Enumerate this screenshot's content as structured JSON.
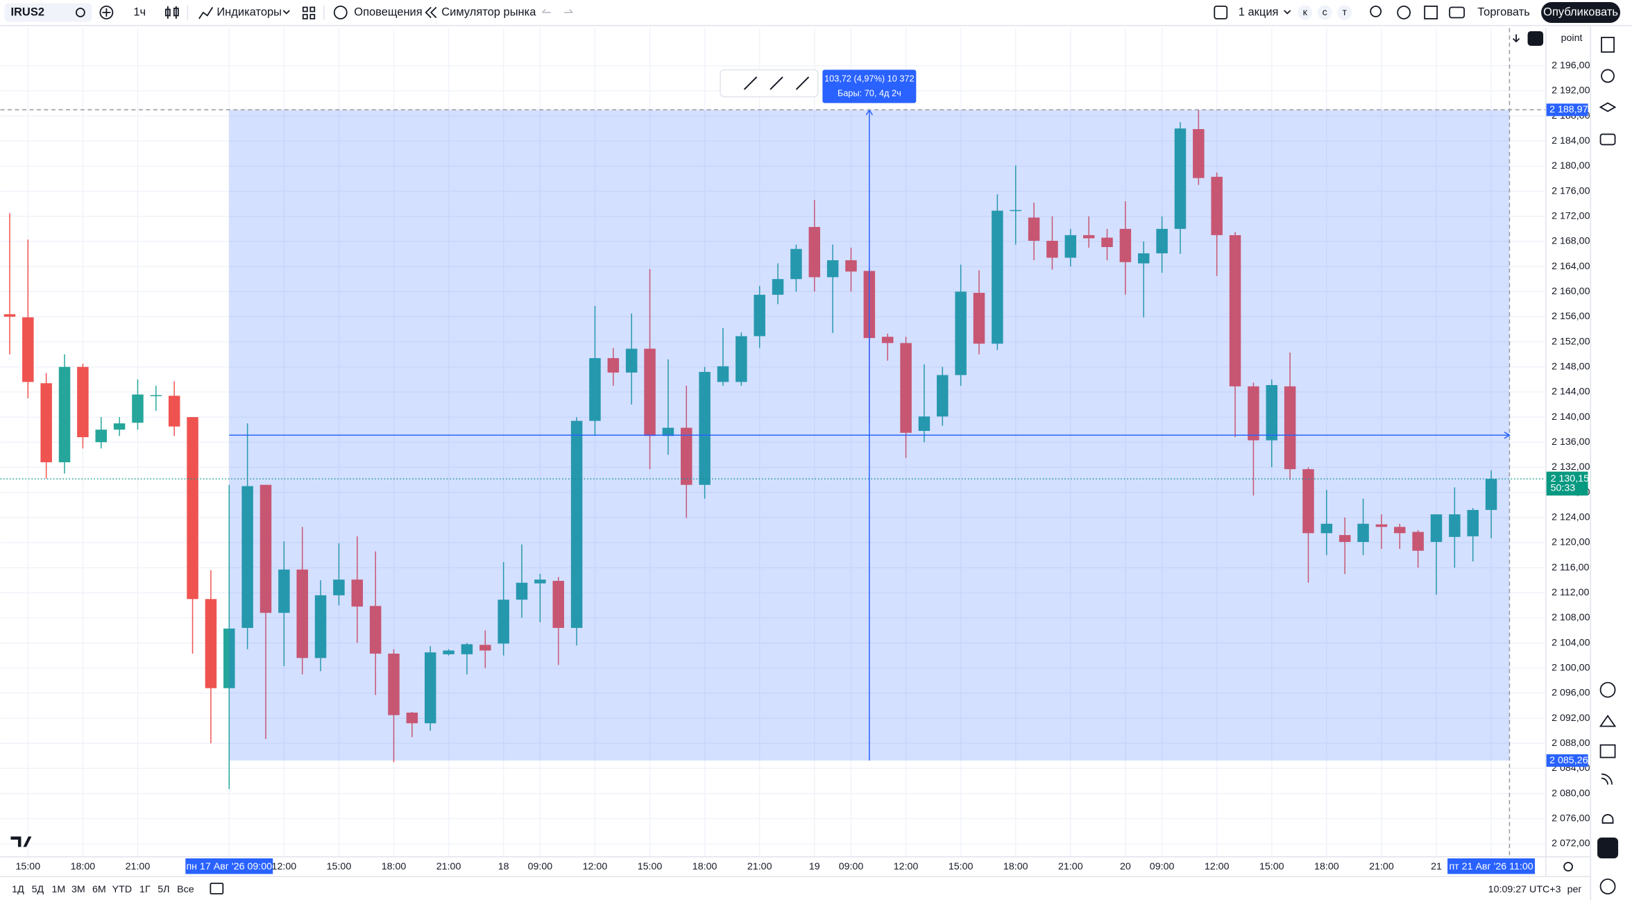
{
  "toolbar": {
    "symbol": "IRUS2",
    "interval": "1ч",
    "indicators": "Индикаторы",
    "alerts": "Оповещения",
    "replay": "Симулятор рынка",
    "quantity": "1 акция",
    "order_keys": [
      "к",
      "с",
      "т"
    ],
    "trade": "Торговать",
    "publish": "Опубликовать"
  },
  "chart_data": {
    "type": "candlestick",
    "scale_mode": "point",
    "x": [
      null,
      "15:00",
      null,
      null,
      "18:00",
      null,
      null,
      "21:00",
      null,
      null,
      null,
      null,
      "пн 17 Авг '26 09:00",
      null,
      null,
      "12:00",
      null,
      null,
      "15:00",
      null,
      null,
      "18:00",
      null,
      null,
      "21:00",
      null,
      null,
      "18",
      null,
      "09:00",
      null,
      null,
      "12:00",
      null,
      null,
      "15:00",
      null,
      null,
      "18:00",
      null,
      null,
      "21:00",
      null,
      null,
      "19",
      null,
      "09:00",
      null,
      null,
      "12:00",
      null,
      null,
      "15:00",
      null,
      null,
      "18:00",
      null,
      null,
      "21:00",
      null,
      null,
      "20",
      null,
      "09:00",
      null,
      null,
      "12:00",
      null,
      null,
      "15:00",
      null,
      null,
      "18:00",
      null,
      null,
      "21:00",
      null,
      null,
      "21",
      null,
      null,
      "пт 21 Авг '26 11:00"
    ],
    "open": [
      2156.4,
      2155.9,
      2145.4,
      2132.8,
      2148,
      2136,
      2138,
      2139.1,
      2143.4,
      2143.4,
      2140,
      2111,
      2096.8,
      2106.4,
      2129.2,
      2108.8,
      2115.7,
      2101.6,
      2111.6,
      2114.1,
      2109.9,
      2102.3,
      2092.9,
      2091.2,
      2102.2,
      2102.2,
      2103.7,
      2103.9,
      2110.9,
      2113.5,
      2113.9,
      2106.4,
      2139.4,
      2149.4,
      2147.1,
      2150.9,
      2137,
      2138.3,
      2129.2,
      2145.6,
      2145.6,
      2152.9,
      2159.5,
      2162,
      2170.3,
      2162.3,
      2165,
      2163.3,
      2152.8,
      2151.8,
      2137.8,
      2140.1,
      2146.7,
      2159.8,
      2151.7,
      2172.9,
      2171.8,
      2168.1,
      2165.4,
      2169,
      2168.6,
      2170,
      2164.5,
      2166.1,
      2170,
      2185.9,
      2178.3,
      2169,
      2144.9,
      2136.3,
      2144.9,
      2131.7,
      2121.5,
      2121.2,
      2120.1,
      2122.9,
      2122.5,
      2121.7,
      2120.1,
      2120.9,
      2121,
      2125.2
    ],
    "high": [
      2172.5,
      2168.3,
      2147,
      2150,
      2148.5,
      2140,
      2140,
      2146,
      2145,
      2145.7,
      2140,
      2115.6,
      2129.2,
      2139,
      2129.2,
      2120.2,
      2122.5,
      2114,
      2119.9,
      2121,
      2118.6,
      2103,
      2093,
      2103.5,
      2103,
      2104,
      2106,
      2116.9,
      2119.7,
      2115,
      2114.5,
      2140,
      2157.7,
      2151,
      2156.5,
      2163.6,
      2149.2,
      2145,
      2148,
      2154.2,
      2153.5,
      2160.9,
      2164.5,
      2167.5,
      2174.6,
      2167.5,
      2167,
      2164,
      2153.3,
      2152.8,
      2148.4,
      2148,
      2164.3,
      2163.4,
      2175.5,
      2180.1,
      2174.2,
      2172,
      2170,
      2172,
      2170,
      2174.4,
      2168,
      2172,
      2187,
      2189,
      2179,
      2169.5,
      2145.5,
      2146,
      2150.3,
      2132,
      2128.4,
      2124,
      2127,
      2124.5,
      2123,
      2122,
      2124.5,
      2128.8,
      2125.5,
      2131.5
    ],
    "low": [
      2150,
      2143,
      2130.2,
      2131,
      2135,
      2135,
      2137,
      2138,
      2141,
      2137,
      2102.3,
      2088,
      2080.7,
      2103,
      2088.7,
      2100.3,
      2099,
      2099.5,
      2110,
      2104,
      2095.7,
      2085,
      2089,
      2090,
      2102,
      2099,
      2100,
      2102,
      2108,
      2107.3,
      2100.5,
      2103.6,
      2137,
      2145,
      2142,
      2131.7,
      2134,
      2123.9,
      2127,
      2145,
      2145,
      2151,
      2158,
      2160,
      2160,
      2153.4,
      2160,
      2139,
      2149,
      2133.5,
      2136,
      2138.6,
      2145,
      2150,
      2150.7,
      2167.5,
      2165,
      2163.5,
      2164,
      2167,
      2165,
      2159.5,
      2155.9,
      2163,
      2166,
      2177,
      2162.5,
      2136.8,
      2127.5,
      2132,
      2130,
      2113.6,
      2118,
      2115,
      2118,
      2119,
      2119,
      2116,
      2111.7,
      2116,
      2117,
      2120.7
    ],
    "close": [
      2156.0,
      2145.6,
      2132.8,
      2148,
      2136.8,
      2138,
      2139,
      2143.6,
      2143.5,
      2138.5,
      2111,
      2096.8,
      2106.3,
      2129,
      2108.8,
      2115.7,
      2101.6,
      2111.6,
      2114.1,
      2109.8,
      2102.3,
      2092.5,
      2091.2,
      2102.5,
      2102.8,
      2103.8,
      2102.8,
      2110.9,
      2113.6,
      2114.1,
      2106.4,
      2139.4,
      2149.4,
      2147.1,
      2150.9,
      2137,
      2138.3,
      2129.2,
      2147.2,
      2148.1,
      2152.9,
      2159.5,
      2162,
      2166.8,
      2162.3,
      2165,
      2163.2,
      2152.6,
      2151.8,
      2137.5,
      2140.1,
      2146.7,
      2160,
      2151.7,
      2172.9,
      2173,
      2168.1,
      2165.4,
      2169,
      2168.5,
      2167.1,
      2164.7,
      2166.1,
      2170,
      2186,
      2178.1,
      2169,
      2144.9,
      2136.3,
      2145.1,
      2131.7,
      2121.5,
      2123,
      2120.1,
      2123,
      2122.5,
      2121.5,
      2118.7,
      2124.5,
      2124.5,
      2125.2,
      2130.15
    ],
    "up_color": "#26a69a",
    "down_color": "#ef5350",
    "ylim": [
      2070,
      2202
    ],
    "yticks": [
      {
        "value": 2072,
        "label": "2 072,00"
      },
      {
        "value": 2076,
        "label": "2 076,00"
      },
      {
        "value": 2080,
        "label": "2 080,00"
      },
      {
        "value": 2084,
        "label": "2 084,00"
      },
      {
        "value": 2088,
        "label": "2 088,00"
      },
      {
        "value": 2092,
        "label": "2 092,00"
      },
      {
        "value": 2096,
        "label": "2 096,00"
      },
      {
        "value": 2100,
        "label": "2 100,00"
      },
      {
        "value": 2104,
        "label": "2 104,00"
      },
      {
        "value": 2108,
        "label": "2 108,00"
      },
      {
        "value": 2112,
        "label": "2 112,00"
      },
      {
        "value": 2116,
        "label": "2 116,00"
      },
      {
        "value": 2120,
        "label": "2 120,00"
      },
      {
        "value": 2124,
        "label": "2 124,00"
      },
      {
        "value": 2128,
        "label": "2 128,00"
      },
      {
        "value": 2132,
        "label": "2 132,00"
      },
      {
        "value": 2136,
        "label": "2 136,00"
      },
      {
        "value": 2140,
        "label": "2 140,00"
      },
      {
        "value": 2144,
        "label": "2 144,00"
      },
      {
        "value": 2148,
        "label": "2 148,00"
      },
      {
        "value": 2152,
        "label": "2 152,00"
      },
      {
        "value": 2156,
        "label": "2 156,00"
      },
      {
        "value": 2160,
        "label": "2 160,00"
      },
      {
        "value": 2164,
        "label": "2 164,00"
      },
      {
        "value": 2168,
        "label": "2 168,00"
      },
      {
        "value": 2172,
        "label": "2 172,00"
      },
      {
        "value": 2176,
        "label": "2 176,00"
      },
      {
        "value": 2180,
        "label": "2 180,00"
      },
      {
        "value": 2184,
        "label": "2 184,00"
      },
      {
        "value": 2188,
        "label": "2 188,00"
      },
      {
        "value": 2192,
        "label": "2 192,00"
      },
      {
        "value": 2196,
        "label": "2 196,00"
      }
    ],
    "grid": true,
    "measure": {
      "summary": "103,72 (4,97%) 10 372",
      "bars": "Бары: 70, 4д 2ч",
      "from_bar": 12,
      "to_bar": 82,
      "from": {
        "value": 2085.26,
        "label": "2 085,26"
      },
      "to": {
        "value": 2188.97,
        "label": "2 188,97"
      },
      "color": "#2962ff"
    },
    "last": {
      "value": 2130.15,
      "label": "2 130,15",
      "countdown": "50:33",
      "color": "#089981"
    }
  },
  "bottom_bar": {
    "ranges": [
      "1Д",
      "5Д",
      "1М",
      "3М",
      "6М",
      "YTD",
      "1Г",
      "5Л",
      "Все"
    ],
    "clock": "10:09:27 UTC+3",
    "session": "рег"
  }
}
